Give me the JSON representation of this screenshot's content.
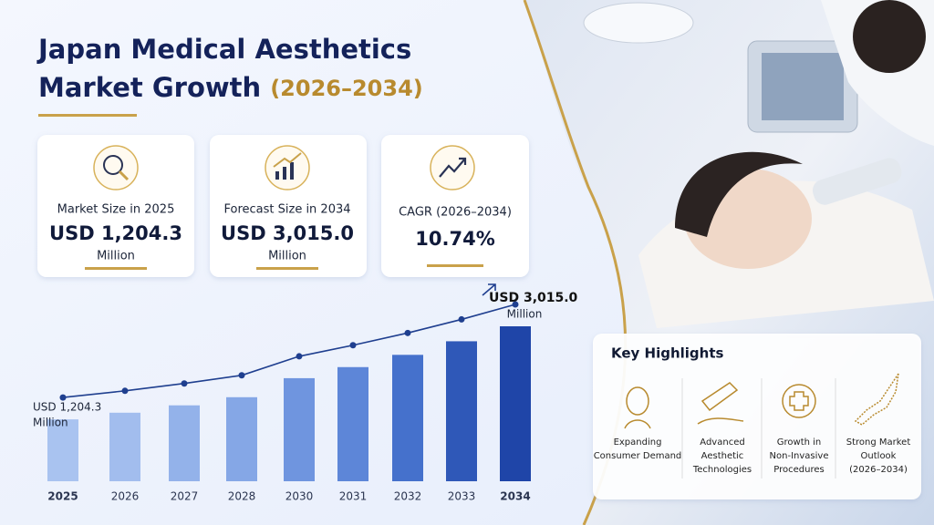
{
  "header": {
    "title_lines": [
      "Japan Medical Aesthetics",
      "Market Growth"
    ],
    "title_years": "(2026–2034)"
  },
  "cards": [
    {
      "label": "Market Size in 2025",
      "value": "USD 1,204.3",
      "unit": "Million"
    },
    {
      "label": "Forecast Size in 2034",
      "value": "USD 3,015.0",
      "unit": "Million"
    },
    {
      "label": "CAGR (2026–2034)",
      "value": "10.74%"
    }
  ],
  "chart_data": {
    "type": "bar",
    "categories": [
      "2025",
      "2026",
      "2027",
      "2028",
      "2030",
      "2031",
      "2032",
      "2033",
      "2034"
    ],
    "values": [
      1204.3,
      1333.6,
      1476.9,
      1635.5,
      2005.6,
      2221.0,
      2459.6,
      2723.8,
      3015.0
    ],
    "colors": [
      "#a9c3f0",
      "#a2bdee",
      "#93b2ea",
      "#85a7e6",
      "#6f95df",
      "#5d86d8",
      "#4571cc",
      "#2f58b8",
      "#1f45a8"
    ],
    "start_annotation": [
      "USD 1,204.3",
      "Million"
    ],
    "end_annotation": [
      "USD 3,015.0",
      "Million"
    ]
  },
  "highlights": {
    "title": "Key Highlights",
    "items": [
      [
        "Expanding",
        "Consumer Demand"
      ],
      [
        "Advanced",
        "Aesthetic",
        "Technologies"
      ],
      [
        "Growth in",
        "Non-Invasive",
        "Procedures"
      ],
      [
        "Strong Market",
        "Outlook",
        "(2026–2034)"
      ]
    ]
  }
}
